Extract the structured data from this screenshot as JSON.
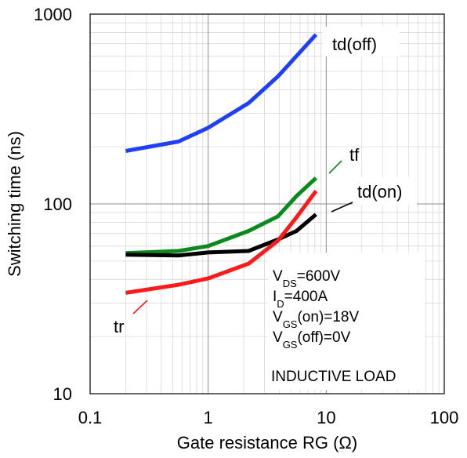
{
  "chart_data": {
    "type": "line",
    "xlabel": "Gate resistance RG (Ω)",
    "ylabel": "Switching time (ns)",
    "xscale": "log",
    "yscale": "log",
    "xlim": [
      0.1,
      100
    ],
    "ylim": [
      10,
      1000
    ],
    "grid": true,
    "x_ticks": [
      "0.1",
      "1",
      "10",
      "100"
    ],
    "y_ticks": [
      "10",
      "100",
      "1000"
    ],
    "series": [
      {
        "name": "td(off)",
        "color": "#1f3fff",
        "x": [
          0.2,
          0.56,
          1.0,
          2.2,
          3.9,
          8.2
        ],
        "y": [
          190,
          213,
          252,
          340,
          470,
          780
        ]
      },
      {
        "name": "tf",
        "color": "#0a8a1e",
        "x": [
          0.2,
          0.56,
          1.0,
          2.2,
          3.9,
          5.6,
          8.2
        ],
        "y": [
          55,
          56.5,
          60,
          72,
          86,
          110,
          137
        ]
      },
      {
        "name": "td(on)",
        "color": "#000000",
        "x": [
          0.2,
          0.56,
          1.0,
          2.2,
          3.9,
          5.6,
          8.2
        ],
        "y": [
          54,
          53.5,
          55.5,
          56.5,
          65,
          72,
          88
        ]
      },
      {
        "name": "tr",
        "color": "#ff1a1a",
        "x": [
          0.2,
          0.56,
          1.0,
          2.2,
          3.9,
          5.6,
          8.2
        ],
        "y": [
          34,
          37.5,
          40.5,
          48.5,
          64,
          85,
          117
        ]
      }
    ],
    "conditions": [
      {
        "pre": "V",
        "sub": "DS",
        "post": "=600V"
      },
      {
        "pre": "I",
        "sub": "D",
        "post": "=400A"
      },
      {
        "pre": "V",
        "sub": "GS",
        "post": "(on)=18V"
      },
      {
        "pre": "V",
        "sub": "GS",
        "post": "(off)=0V"
      }
    ],
    "annotation": "INDUCTIVE LOAD"
  }
}
